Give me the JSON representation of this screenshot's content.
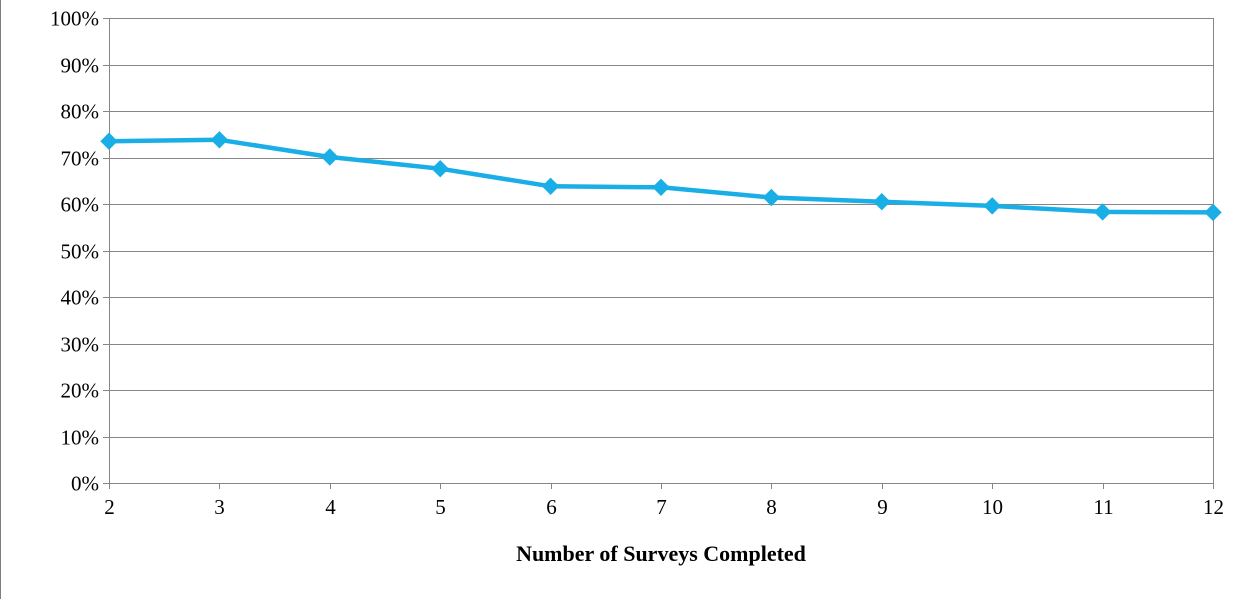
{
  "chart_data": {
    "type": "line",
    "title": "",
    "xlabel": "Number of Surveys Completed",
    "ylabel": "",
    "x": [
      2,
      3,
      4,
      5,
      6,
      7,
      8,
      9,
      10,
      11,
      12
    ],
    "series": [
      {
        "values": [
          0.735,
          0.738,
          0.701,
          0.676,
          0.638,
          0.636,
          0.614,
          0.605,
          0.596,
          0.583,
          0.582
        ],
        "color": "#1aaee6",
        "marker": "diamond"
      }
    ],
    "xlim": [
      2,
      12
    ],
    "ylim": [
      0,
      1
    ],
    "y_ticks": [
      0,
      0.1,
      0.2,
      0.3,
      0.4,
      0.5,
      0.6,
      0.7,
      0.8,
      0.9,
      1.0
    ],
    "y_tick_labels": [
      "0%",
      "10%",
      "20%",
      "30%",
      "40%",
      "50%",
      "60%",
      "70%",
      "80%",
      "90%",
      "100%"
    ],
    "x_tick_labels": [
      "2",
      "3",
      "4",
      "5",
      "6",
      "7",
      "8",
      "9",
      "10",
      "11",
      "12"
    ],
    "grid": true,
    "legend": "none",
    "colors": {
      "line": "#1aaee6",
      "grid": "#868686",
      "axis": "#868686"
    }
  }
}
